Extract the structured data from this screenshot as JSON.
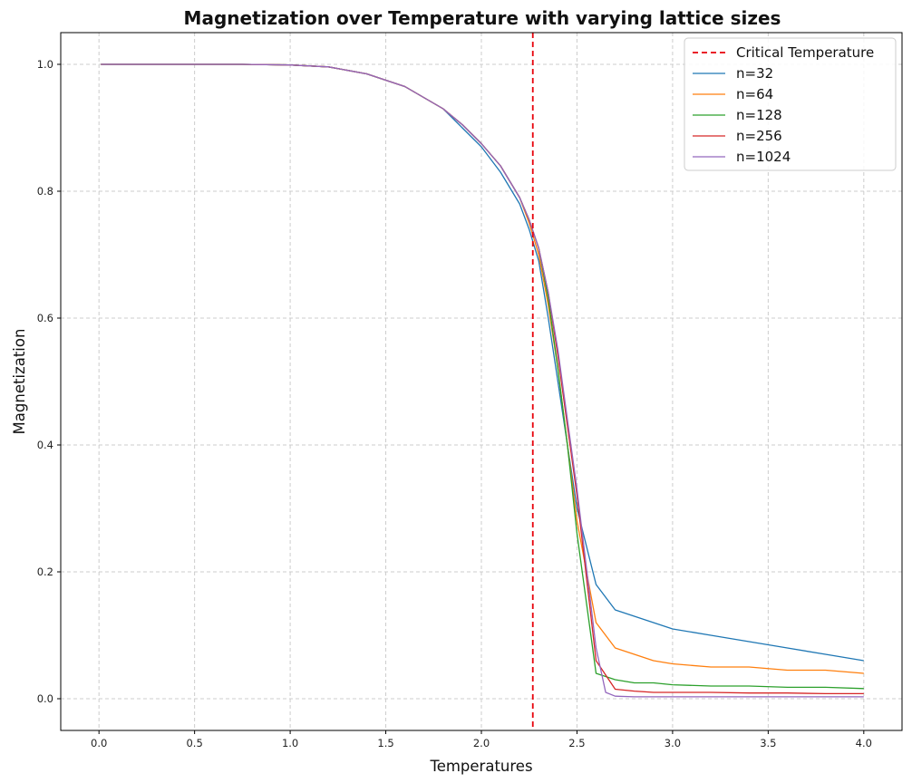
{
  "chart_data": {
    "type": "line",
    "title": "Magnetization over Temperature with varying lattice sizes",
    "xlabel": "Temperatures",
    "ylabel": "Magnetization",
    "xlim": [
      -0.2,
      4.2
    ],
    "ylim": [
      -0.05,
      1.05
    ],
    "xticks": [
      0.0,
      0.5,
      1.0,
      1.5,
      2.0,
      2.5,
      3.0,
      3.5,
      4.0
    ],
    "xtick_labels": [
      "0.0",
      "0.5",
      "1.0",
      "1.5",
      "2.0",
      "2.5",
      "3.0",
      "3.5",
      "4.0"
    ],
    "yticks": [
      0.0,
      0.2,
      0.4,
      0.6,
      0.8,
      1.0
    ],
    "ytick_labels": [
      "0.0",
      "0.2",
      "0.4",
      "0.6",
      "0.8",
      "1.0"
    ],
    "grid": true,
    "legend_position": "top-right",
    "critical_temperature": {
      "name": "Critical Temperature",
      "x": 2.269,
      "color": "#e8000b"
    },
    "series": [
      {
        "name": "n=32",
        "color": "#1f77b4",
        "x": [
          0.01,
          0.25,
          0.5,
          0.75,
          1.0,
          1.2,
          1.4,
          1.6,
          1.8,
          1.9,
          2.0,
          2.1,
          2.2,
          2.25,
          2.3,
          2.35,
          2.4,
          2.45,
          2.5,
          2.6,
          2.7,
          2.8,
          2.9,
          3.0,
          3.2,
          3.4,
          3.6,
          3.8,
          4.0
        ],
        "y": [
          1.0,
          1.0,
          1.0,
          1.0,
          0.999,
          0.996,
          0.985,
          0.965,
          0.93,
          0.9,
          0.87,
          0.83,
          0.78,
          0.74,
          0.69,
          0.6,
          0.5,
          0.4,
          0.3,
          0.18,
          0.14,
          0.13,
          0.12,
          0.11,
          0.1,
          0.09,
          0.08,
          0.07,
          0.06
        ]
      },
      {
        "name": "n=64",
        "color": "#ff7f0e",
        "x": [
          0.01,
          0.25,
          0.5,
          0.75,
          1.0,
          1.2,
          1.4,
          1.6,
          1.8,
          1.9,
          2.0,
          2.1,
          2.2,
          2.25,
          2.3,
          2.35,
          2.4,
          2.45,
          2.5,
          2.6,
          2.7,
          2.8,
          2.9,
          3.0,
          3.2,
          3.4,
          3.6,
          3.8,
          4.0
        ],
        "y": [
          1.0,
          1.0,
          1.0,
          1.0,
          0.999,
          0.996,
          0.985,
          0.965,
          0.93,
          0.905,
          0.875,
          0.84,
          0.79,
          0.75,
          0.7,
          0.62,
          0.52,
          0.4,
          0.28,
          0.12,
          0.08,
          0.07,
          0.06,
          0.055,
          0.05,
          0.05,
          0.045,
          0.045,
          0.04
        ]
      },
      {
        "name": "n=128",
        "color": "#2ca02c",
        "x": [
          0.01,
          0.25,
          0.5,
          0.75,
          1.0,
          1.2,
          1.4,
          1.6,
          1.8,
          1.9,
          2.0,
          2.1,
          2.2,
          2.25,
          2.3,
          2.35,
          2.4,
          2.45,
          2.5,
          2.6,
          2.7,
          2.8,
          2.9,
          3.0,
          3.2,
          3.4,
          3.6,
          3.8,
          4.0
        ],
        "y": [
          1.0,
          1.0,
          1.0,
          1.0,
          0.999,
          0.996,
          0.985,
          0.965,
          0.93,
          0.905,
          0.875,
          0.84,
          0.79,
          0.755,
          0.71,
          0.63,
          0.52,
          0.4,
          0.26,
          0.04,
          0.03,
          0.025,
          0.025,
          0.022,
          0.02,
          0.02,
          0.018,
          0.018,
          0.016
        ]
      },
      {
        "name": "n=256",
        "color": "#d62728",
        "x": [
          0.01,
          0.25,
          0.5,
          0.75,
          1.0,
          1.2,
          1.4,
          1.6,
          1.8,
          1.9,
          2.0,
          2.1,
          2.2,
          2.25,
          2.3,
          2.35,
          2.4,
          2.45,
          2.5,
          2.6,
          2.7,
          2.8,
          2.9,
          3.0,
          3.2,
          3.4,
          3.6,
          3.8,
          4.0
        ],
        "y": [
          1.0,
          1.0,
          1.0,
          1.0,
          0.999,
          0.996,
          0.985,
          0.965,
          0.93,
          0.905,
          0.875,
          0.84,
          0.79,
          0.755,
          0.71,
          0.64,
          0.54,
          0.43,
          0.32,
          0.06,
          0.015,
          0.012,
          0.01,
          0.01,
          0.01,
          0.009,
          0.009,
          0.008,
          0.008
        ]
      },
      {
        "name": "n=1024",
        "color": "#9467bd",
        "x": [
          0.01,
          0.25,
          0.5,
          0.75,
          1.0,
          1.2,
          1.4,
          1.6,
          1.8,
          1.9,
          2.0,
          2.1,
          2.2,
          2.25,
          2.3,
          2.35,
          2.4,
          2.45,
          2.5,
          2.6,
          2.65,
          2.7,
          2.8,
          2.9,
          3.0,
          3.2,
          3.4,
          3.6,
          3.8,
          4.0
        ],
        "y": [
          1.0,
          1.0,
          1.0,
          1.0,
          0.999,
          0.996,
          0.985,
          0.965,
          0.93,
          0.905,
          0.875,
          0.84,
          0.79,
          0.755,
          0.71,
          0.64,
          0.55,
          0.44,
          0.33,
          0.08,
          0.01,
          0.004,
          0.003,
          0.003,
          0.003,
          0.003,
          0.003,
          0.003,
          0.003,
          0.003
        ]
      }
    ]
  }
}
